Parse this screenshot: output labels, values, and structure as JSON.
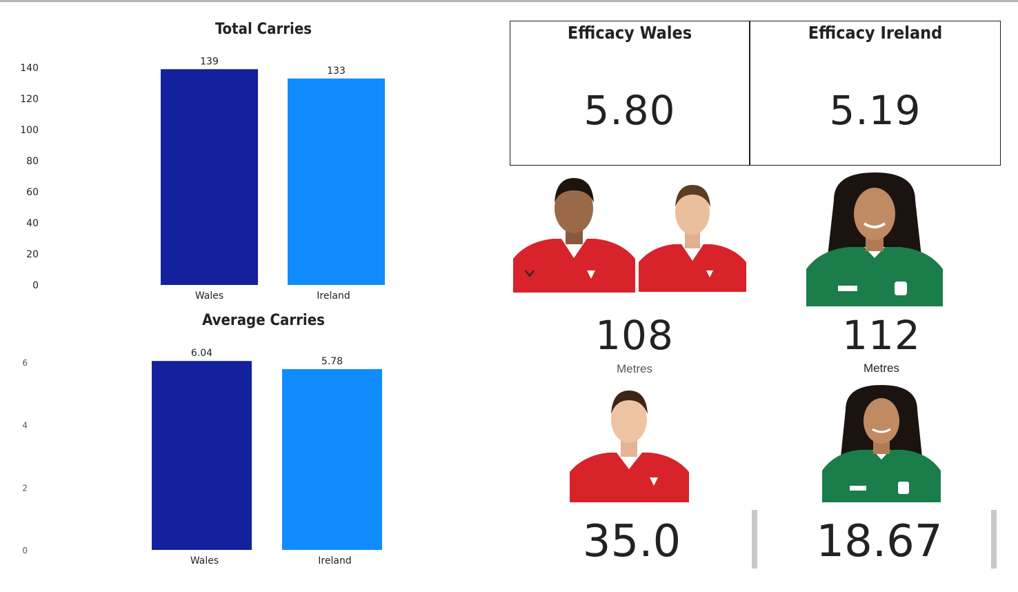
{
  "charts": {
    "total": {
      "title": "Total Carries"
    },
    "average": {
      "title": "Average Carries"
    }
  },
  "chart_data": [
    {
      "type": "bar",
      "title": "Total Carries",
      "categories": [
        "Wales",
        "Ireland"
      ],
      "values": [
        139,
        133
      ],
      "data_labels": [
        "139",
        "133"
      ],
      "colors": [
        "#14219e",
        "#118cff"
      ],
      "yticks": [
        "0",
        "20",
        "40",
        "60",
        "80",
        "100",
        "120",
        "140"
      ],
      "ylim": [
        0,
        140
      ],
      "grid": false
    },
    {
      "type": "bar",
      "title": "Average Carries",
      "categories": [
        "Wales",
        "Ireland"
      ],
      "values": [
        6.04,
        5.78
      ],
      "data_labels": [
        "6.04",
        "5.78"
      ],
      "colors": [
        "#14219e",
        "#118cff"
      ],
      "yticks": [
        "0",
        "2",
        "4",
        "6"
      ],
      "ylim": [
        0,
        6
      ],
      "grid": false
    }
  ],
  "cards": {
    "wales": {
      "title": "Efficacy Wales",
      "value": "5.80"
    },
    "ireland": {
      "title": "Efficacy Ireland",
      "value": "5.19"
    }
  },
  "metres": {
    "wales": {
      "value": "108",
      "label": "Metres",
      "label_color": "#555555"
    },
    "ireland": {
      "value": "112",
      "label": "Metres",
      "label_color": "#222222"
    }
  },
  "bottom": {
    "wales": {
      "value": "35.0"
    },
    "ireland": {
      "value": "18.67"
    }
  },
  "colors": {
    "wales_bar": "#14219e",
    "ireland_bar": "#118cff",
    "wales_kit": "#d8232a",
    "ireland_kit": "#1a7d4a"
  },
  "photos": {
    "wales_player_1": "wales-red-jersey",
    "wales_player_2": "wales-red-jersey",
    "wales_player_3": "wales-red-jersey",
    "ireland_player_1": "ireland-green-jersey",
    "ireland_player_2": "ireland-green-jersey"
  }
}
